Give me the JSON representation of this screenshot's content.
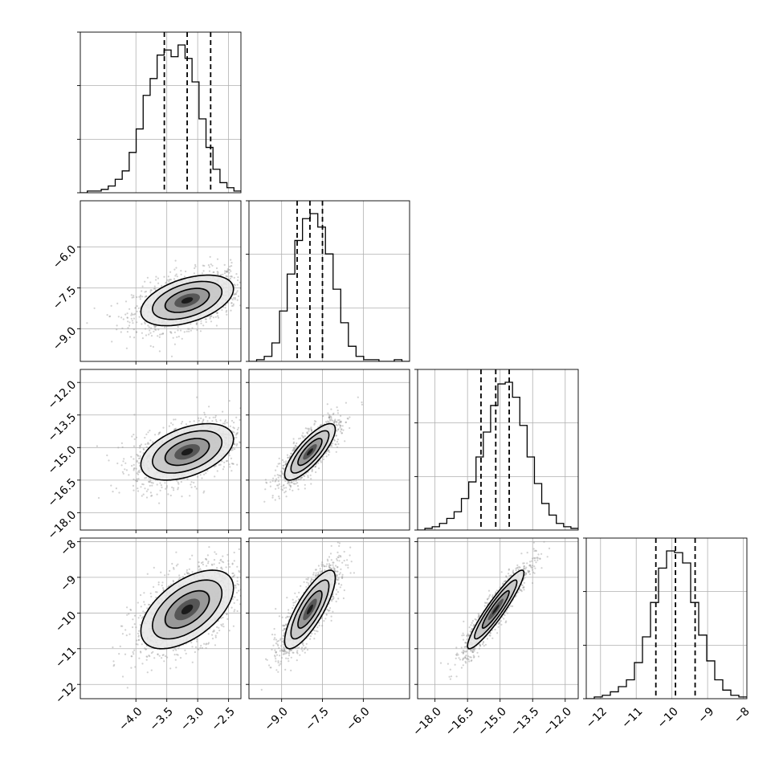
{
  "chart_data": {
    "type": "corner",
    "grid": true,
    "parameters": [
      {
        "range": [
          -4.9,
          -2.3
        ],
        "ticks": [
          -4.0,
          -3.5,
          -3.0,
          -2.5
        ],
        "tick_labels": [
          "−4.0",
          "−3.5",
          "−3.0",
          "−2.5"
        ],
        "quantiles": [
          -3.54,
          -3.17,
          -2.79
        ],
        "histogram": [
          0,
          1,
          1,
          2,
          4,
          8,
          13,
          24,
          38,
          58,
          68,
          82,
          85,
          81,
          88,
          80,
          66,
          44,
          27,
          14,
          6,
          3,
          1
        ]
      },
      {
        "range": [
          -10.2,
          -4.3
        ],
        "ticks": [
          -9.0,
          -7.5,
          -6.0
        ],
        "tick_labels": [
          "−9.0",
          "−7.5",
          "−6.0"
        ],
        "quantiles": [
          -8.43,
          -7.96,
          -7.5
        ],
        "histogram": [
          0,
          1,
          3,
          11,
          30,
          52,
          72,
          85,
          88,
          80,
          64,
          43,
          23,
          9,
          3,
          1,
          1,
          0,
          0,
          1,
          0
        ]
      },
      {
        "range": [
          -18.8,
          -11.4
        ],
        "ticks": [
          -18.0,
          -16.5,
          -15.0,
          -13.5,
          -12.0
        ],
        "tick_labels": [
          "−18.0",
          "−16.5",
          "−15.0",
          "−13.5",
          "−12.0"
        ],
        "quantiles": [
          -15.88,
          -15.2,
          -14.58
        ],
        "histogram": [
          0,
          1,
          2,
          4,
          7,
          11,
          19,
          29,
          44,
          59,
          75,
          88,
          89,
          80,
          63,
          44,
          28,
          16,
          9,
          4,
          2,
          1
        ]
      },
      {
        "range": [
          -12.4,
          -7.9
        ],
        "ticks": [
          -12,
          -11,
          -10,
          -9,
          -8
        ],
        "tick_labels": [
          "−12",
          "−11",
          "−10",
          "−9",
          "−8"
        ],
        "quantiles": [
          -10.45,
          -9.9,
          -9.35
        ],
        "histogram": [
          0,
          1,
          2,
          4,
          7,
          11,
          21,
          36,
          56,
          76,
          86,
          85,
          79,
          56,
          37,
          22,
          11,
          5,
          2,
          1
        ]
      }
    ],
    "pairs": [
      {
        "row": 1,
        "col": 0,
        "corr": 0.45
      },
      {
        "row": 2,
        "col": 0,
        "corr": 0.45
      },
      {
        "row": 3,
        "col": 0,
        "corr": 0.55
      },
      {
        "row": 2,
        "col": 1,
        "corr": 0.8
      },
      {
        "row": 3,
        "col": 1,
        "corr": 0.8
      },
      {
        "row": 3,
        "col": 2,
        "corr": 0.93
      }
    ],
    "colors": {
      "points": "#9a9a9a",
      "contour": "#000000",
      "grid": "#b0b0b0",
      "quantile_line": "#000000"
    }
  }
}
